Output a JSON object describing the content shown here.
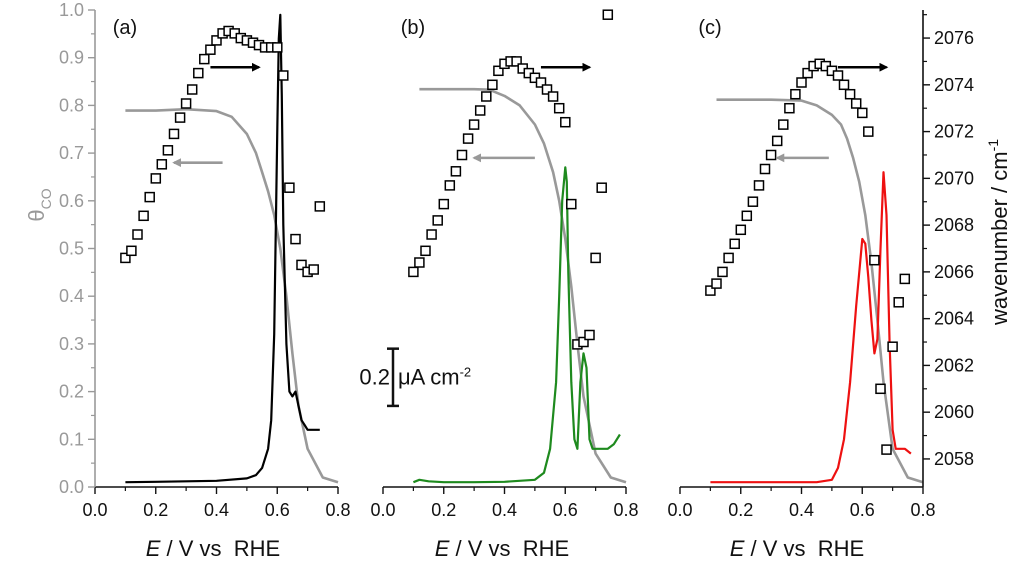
{
  "chart_data": {
    "type": "line",
    "title": "",
    "colors": {
      "left_axis": "#999999",
      "theta_curve": "#999999",
      "arrow_left": "#999999",
      "arrow_right": "#000000",
      "markers": "#000000",
      "cv_a": "#000000",
      "cv_b": "#1e8a1e",
      "cv_c": "#ee1111"
    },
    "xlabel_italic": "E",
    "xlabel_rest": " / V vs  RHE",
    "xlim": [
      0.0,
      0.8
    ],
    "x_ticks": [
      "0.0",
      "0.2",
      "0.4",
      "0.6",
      "0.8"
    ],
    "left_axis": {
      "label_main": "θ",
      "label_sub": "CO",
      "ylim": [
        0.0,
        1.0
      ],
      "ticks": [
        "0.0",
        "0.1",
        "0.2",
        "0.3",
        "0.4",
        "0.5",
        "0.6",
        "0.7",
        "0.8",
        "0.9",
        "1.0"
      ]
    },
    "right_axis": {
      "label_main": "wavenumber / cm",
      "label_sup": "-1",
      "ylim": [
        2056.8,
        2077.2
      ],
      "ticks": [
        "2058",
        "2060",
        "2062",
        "2064",
        "2066",
        "2068",
        "2070",
        "2072",
        "2074",
        "2076"
      ]
    },
    "scale_bar": {
      "value": "0.2",
      "unit": "μA cm",
      "unit_sup": "-2",
      "from": 0.17,
      "to": 0.29
    },
    "panels": [
      {
        "label": "(a)",
        "theta_plateau": 0.79,
        "theta_x": [
          0.1,
          0.2,
          0.3,
          0.4,
          0.45,
          0.5,
          0.53,
          0.55,
          0.57,
          0.59,
          0.61,
          0.63,
          0.65,
          0.67,
          0.7,
          0.75,
          0.8
        ],
        "theta_y": [
          0.789,
          0.789,
          0.792,
          0.788,
          0.776,
          0.74,
          0.7,
          0.66,
          0.62,
          0.57,
          0.5,
          0.4,
          0.28,
          0.17,
          0.08,
          0.02,
          0.01
        ],
        "wavenumber_x": [
          0.1,
          0.12,
          0.14,
          0.16,
          0.18,
          0.2,
          0.22,
          0.24,
          0.26,
          0.28,
          0.3,
          0.32,
          0.34,
          0.36,
          0.38,
          0.4,
          0.42,
          0.44,
          0.46,
          0.48,
          0.5,
          0.52,
          0.54,
          0.56,
          0.58,
          0.6,
          0.62,
          0.64,
          0.66,
          0.68,
          0.7,
          0.72,
          0.74
        ],
        "wavenumber_y": [
          2066.6,
          2066.9,
          2067.6,
          2068.4,
          2069.2,
          2070.0,
          2070.6,
          2071.2,
          2071.9,
          2072.6,
          2073.2,
          2073.8,
          2074.5,
          2075.1,
          2075.5,
          2075.9,
          2076.2,
          2076.3,
          2076.2,
          2076.0,
          2075.9,
          2075.8,
          2075.7,
          2075.6,
          2075.6,
          2075.6,
          2074.4,
          2069.6,
          2067.4,
          2066.3,
          2066.0,
          2066.1,
          2068.8
        ],
        "cv_x": [
          0.1,
          0.2,
          0.3,
          0.4,
          0.5,
          0.53,
          0.55,
          0.57,
          0.58,
          0.59,
          0.6,
          0.605,
          0.61,
          0.615,
          0.62,
          0.63,
          0.64,
          0.65,
          0.66,
          0.67,
          0.68,
          0.69,
          0.7,
          0.72,
          0.74
        ],
        "cv_y": [
          0.01,
          0.011,
          0.012,
          0.013,
          0.018,
          0.025,
          0.04,
          0.08,
          0.14,
          0.32,
          0.75,
          0.94,
          0.99,
          0.82,
          0.55,
          0.3,
          0.2,
          0.19,
          0.2,
          0.17,
          0.14,
          0.13,
          0.12,
          0.12,
          0.12
        ],
        "arrow_left": {
          "x1": 0.42,
          "x2": 0.26,
          "y": 0.68
        },
        "arrow_right": {
          "x1": 0.38,
          "x2": 0.54,
          "y": 0.88
        }
      },
      {
        "label": "(b)",
        "theta_x": [
          0.12,
          0.2,
          0.3,
          0.35,
          0.4,
          0.45,
          0.5,
          0.53,
          0.56,
          0.58,
          0.6,
          0.62,
          0.64,
          0.66,
          0.7,
          0.75,
          0.8
        ],
        "theta_y": [
          0.834,
          0.834,
          0.834,
          0.833,
          0.82,
          0.8,
          0.76,
          0.72,
          0.66,
          0.6,
          0.52,
          0.42,
          0.3,
          0.19,
          0.07,
          0.02,
          0.01
        ],
        "wavenumber_x": [
          0.1,
          0.12,
          0.14,
          0.16,
          0.18,
          0.2,
          0.22,
          0.24,
          0.26,
          0.28,
          0.3,
          0.32,
          0.34,
          0.36,
          0.38,
          0.4,
          0.42,
          0.44,
          0.46,
          0.48,
          0.5,
          0.52,
          0.54,
          0.56,
          0.58,
          0.6,
          0.62,
          0.64,
          0.66,
          0.68,
          0.7,
          0.72,
          0.74
        ],
        "wavenumber_y": [
          2066.0,
          2066.4,
          2066.9,
          2067.6,
          2068.2,
          2068.9,
          2069.7,
          2070.3,
          2071.0,
          2071.7,
          2072.3,
          2072.9,
          2073.5,
          2074.0,
          2074.6,
          2074.9,
          2075.0,
          2075.0,
          2074.7,
          2074.5,
          2074.3,
          2074.1,
          2073.8,
          2073.5,
          2073.0,
          2072.4,
          2068.9,
          2062.9,
          2063.0,
          2063.3,
          2066.6,
          2069.6,
          2077.0
        ],
        "cv_x": [
          0.1,
          0.12,
          0.15,
          0.2,
          0.3,
          0.4,
          0.5,
          0.53,
          0.55,
          0.57,
          0.58,
          0.59,
          0.6,
          0.605,
          0.61,
          0.62,
          0.63,
          0.64,
          0.65,
          0.66,
          0.67,
          0.68,
          0.69,
          0.7,
          0.72,
          0.74,
          0.76,
          0.78
        ],
        "cv_y": [
          0.01,
          0.015,
          0.012,
          0.01,
          0.01,
          0.011,
          0.015,
          0.03,
          0.08,
          0.22,
          0.4,
          0.6,
          0.67,
          0.64,
          0.45,
          0.22,
          0.1,
          0.08,
          0.22,
          0.28,
          0.25,
          0.1,
          0.08,
          0.08,
          0.08,
          0.08,
          0.09,
          0.11
        ],
        "arrow_left": {
          "x1": 0.5,
          "x2": 0.3,
          "y": 0.69
        },
        "arrow_right": {
          "x1": 0.52,
          "x2": 0.68,
          "y": 0.88
        }
      },
      {
        "label": "(c)",
        "theta_x": [
          0.12,
          0.2,
          0.3,
          0.4,
          0.45,
          0.5,
          0.53,
          0.55,
          0.57,
          0.59,
          0.61,
          0.63,
          0.65,
          0.67,
          0.7,
          0.75,
          0.8
        ],
        "theta_y": [
          0.812,
          0.812,
          0.812,
          0.81,
          0.8,
          0.78,
          0.76,
          0.73,
          0.69,
          0.64,
          0.57,
          0.47,
          0.35,
          0.22,
          0.08,
          0.02,
          0.01
        ],
        "wavenumber_x": [
          0.1,
          0.12,
          0.14,
          0.16,
          0.18,
          0.2,
          0.22,
          0.24,
          0.26,
          0.28,
          0.3,
          0.32,
          0.34,
          0.36,
          0.38,
          0.4,
          0.42,
          0.44,
          0.46,
          0.48,
          0.5,
          0.52,
          0.54,
          0.56,
          0.58,
          0.6,
          0.62,
          0.64,
          0.66,
          0.68,
          0.7,
          0.72,
          0.74
        ],
        "wavenumber_y": [
          2065.2,
          2065.5,
          2066.0,
          2066.6,
          2067.2,
          2067.8,
          2068.4,
          2069.0,
          2069.7,
          2070.4,
          2071.0,
          2071.6,
          2072.3,
          2073.0,
          2073.6,
          2074.1,
          2074.5,
          2074.8,
          2074.9,
          2074.8,
          2074.6,
          2074.4,
          2074.0,
          2073.6,
          2073.2,
          2072.8,
          2072.0,
          2066.5,
          2061.0,
          2058.4,
          2062.8,
          2064.7,
          2065.7
        ],
        "cv_x": [
          0.1,
          0.2,
          0.3,
          0.4,
          0.45,
          0.5,
          0.52,
          0.54,
          0.56,
          0.58,
          0.6,
          0.61,
          0.62,
          0.63,
          0.64,
          0.65,
          0.66,
          0.67,
          0.68,
          0.69,
          0.7,
          0.71,
          0.72,
          0.74,
          0.76
        ],
        "cv_y": [
          0.01,
          0.01,
          0.01,
          0.01,
          0.01,
          0.015,
          0.04,
          0.1,
          0.22,
          0.38,
          0.52,
          0.51,
          0.44,
          0.35,
          0.28,
          0.31,
          0.5,
          0.66,
          0.57,
          0.3,
          0.12,
          0.08,
          0.08,
          0.08,
          0.07
        ],
        "arrow_left": {
          "x1": 0.49,
          "x2": 0.32,
          "y": 0.69
        },
        "arrow_right": {
          "x1": 0.52,
          "x2": 0.68,
          "y": 0.88
        }
      }
    ]
  }
}
